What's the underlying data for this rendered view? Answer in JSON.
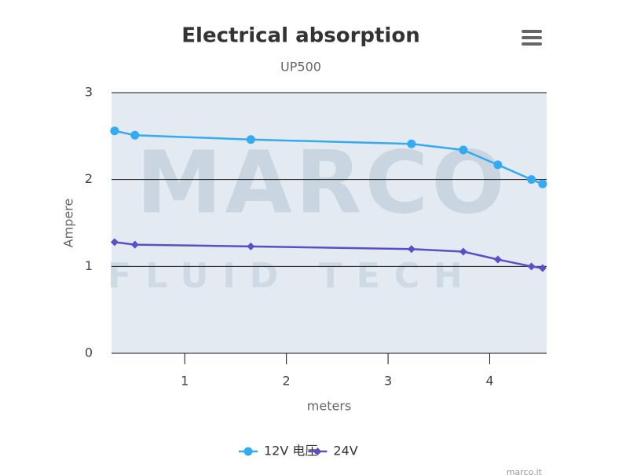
{
  "chart_data": {
    "type": "line",
    "title": "Electrical absorption",
    "subtitle": "UP500",
    "x_label": "meters",
    "y_label": "Ampere",
    "watermark": [
      "MARCO",
      "FLUID TECH"
    ],
    "credit": "marco.it",
    "x": [
      0.31,
      0.51,
      1.65,
      3.23,
      3.74,
      4.08,
      4.41,
      4.52
    ],
    "series": [
      {
        "name": "12V 电压",
        "color": "#33aaf2",
        "marker": "circle",
        "values": [
          2.56,
          2.51,
          2.46,
          2.41,
          2.34,
          2.17,
          2.0,
          1.95
        ]
      },
      {
        "name": "24V",
        "color": "#5a4fc6",
        "marker": "diamond",
        "values": [
          1.28,
          1.25,
          1.23,
          1.2,
          1.17,
          1.08,
          1.0,
          0.98
        ]
      }
    ],
    "xlim": [
      0.28,
      4.56
    ],
    "xticks": [
      1,
      2,
      3,
      4
    ],
    "ylim": [
      0,
      3
    ],
    "yticks": [
      0,
      1,
      2,
      3
    ],
    "grid": true,
    "legend": "bottom"
  }
}
